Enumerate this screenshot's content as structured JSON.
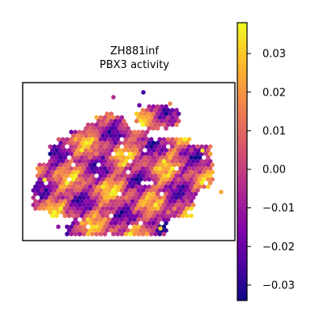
{
  "chart_data": {
    "type": "heatmap",
    "title_lines": [
      "ZH881inf",
      "PBX3 activity"
    ],
    "colormap": "plasma",
    "colorbar": {
      "vmin": -0.034,
      "vmax": 0.038,
      "ticks": [
        0.03,
        0.02,
        0.01,
        0.0,
        -0.01,
        -0.02,
        -0.03
      ],
      "tick_labels": [
        "0.03",
        "0.02",
        "0.01",
        "0.00",
        "−0.01",
        "−0.02",
        "−0.03"
      ]
    },
    "grid": false,
    "axes_ticks_visible": false
  }
}
